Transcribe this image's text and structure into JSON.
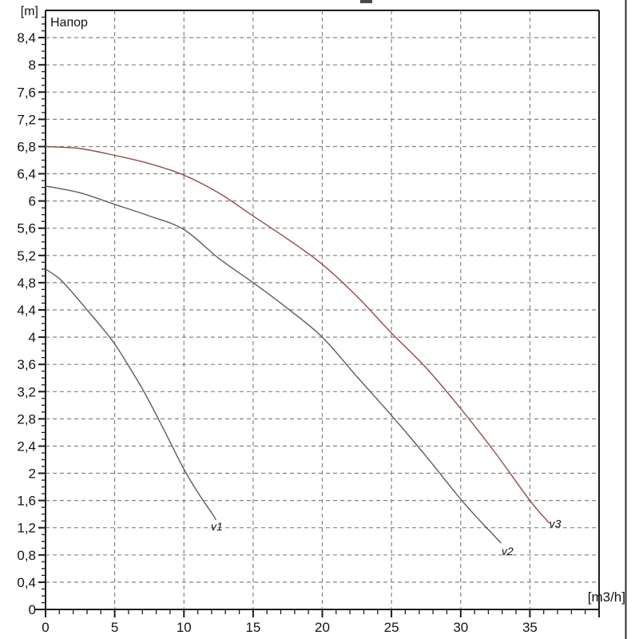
{
  "chart_data": {
    "type": "line",
    "title": "Напор",
    "y_unit_label": "[m]",
    "x_unit_label": "[m3/h]",
    "xlabel": "[m3/h]",
    "ylabel": "Напор [m]",
    "xlim": [
      0,
      40
    ],
    "ylim": [
      0,
      8.8
    ],
    "x_major_step": 5,
    "x_minor_step": 1,
    "y_major_step": 0.4,
    "y_minor_step": 0.1,
    "grid": "dashed",
    "legend_position": "labels-at-curve-ends",
    "x_tick_labels": [
      "0",
      "5",
      "10",
      "15",
      "20",
      "25",
      "30",
      "35"
    ],
    "y_tick_labels": [
      "0",
      "0,4",
      "0,8",
      "1,2",
      "1,6",
      "2",
      "2,4",
      "2,8",
      "3,2",
      "3,6",
      "4",
      "4,4",
      "4,8",
      "5,2",
      "5,6",
      "6",
      "6,4",
      "6,8",
      "7,2",
      "7,6",
      "8",
      "8,4"
    ],
    "colors": {
      "axis": "#1c1c1c",
      "grid": "#848484",
      "text": "#141414"
    },
    "series": [
      {
        "name": "v1",
        "color": "#5c5c63",
        "label_color": "#6e6e74",
        "label_at": [
          11.95,
          1.16
        ],
        "points": [
          [
            0,
            5.0
          ],
          [
            1,
            4.86
          ],
          [
            2,
            4.64
          ],
          [
            3,
            4.4
          ],
          [
            4,
            4.16
          ],
          [
            5,
            3.9
          ],
          [
            6,
            3.58
          ],
          [
            7,
            3.24
          ],
          [
            8,
            2.86
          ],
          [
            9,
            2.46
          ],
          [
            10,
            2.06
          ],
          [
            11,
            1.72
          ],
          [
            12,
            1.42
          ],
          [
            12.3,
            1.32
          ]
        ]
      },
      {
        "name": "v2",
        "color": "#5c5c63",
        "label_color": "#6e6e74",
        "label_at": [
          32.95,
          0.8
        ],
        "points": [
          [
            0,
            6.22
          ],
          [
            2.5,
            6.12
          ],
          [
            5,
            5.95
          ],
          [
            7.5,
            5.78
          ],
          [
            10,
            5.58
          ],
          [
            12.5,
            5.16
          ],
          [
            15,
            4.8
          ],
          [
            17.5,
            4.42
          ],
          [
            20,
            4.0
          ],
          [
            22.5,
            3.42
          ],
          [
            25,
            2.85
          ],
          [
            27.5,
            2.25
          ],
          [
            30,
            1.62
          ],
          [
            31.5,
            1.28
          ],
          [
            32.9,
            0.98
          ]
        ]
      },
      {
        "name": "v3",
        "color": "#8f4f4a",
        "label_color": "#a4706b",
        "label_at": [
          36.4,
          1.2
        ],
        "points": [
          [
            0,
            6.8
          ],
          [
            2.5,
            6.77
          ],
          [
            5,
            6.67
          ],
          [
            7.5,
            6.55
          ],
          [
            10,
            6.38
          ],
          [
            12.5,
            6.12
          ],
          [
            15,
            5.78
          ],
          [
            17.5,
            5.44
          ],
          [
            20,
            5.07
          ],
          [
            22.5,
            4.6
          ],
          [
            25,
            4.06
          ],
          [
            27.5,
            3.55
          ],
          [
            30,
            2.95
          ],
          [
            32.5,
            2.3
          ],
          [
            35,
            1.6
          ],
          [
            36.4,
            1.27
          ]
        ]
      }
    ]
  }
}
